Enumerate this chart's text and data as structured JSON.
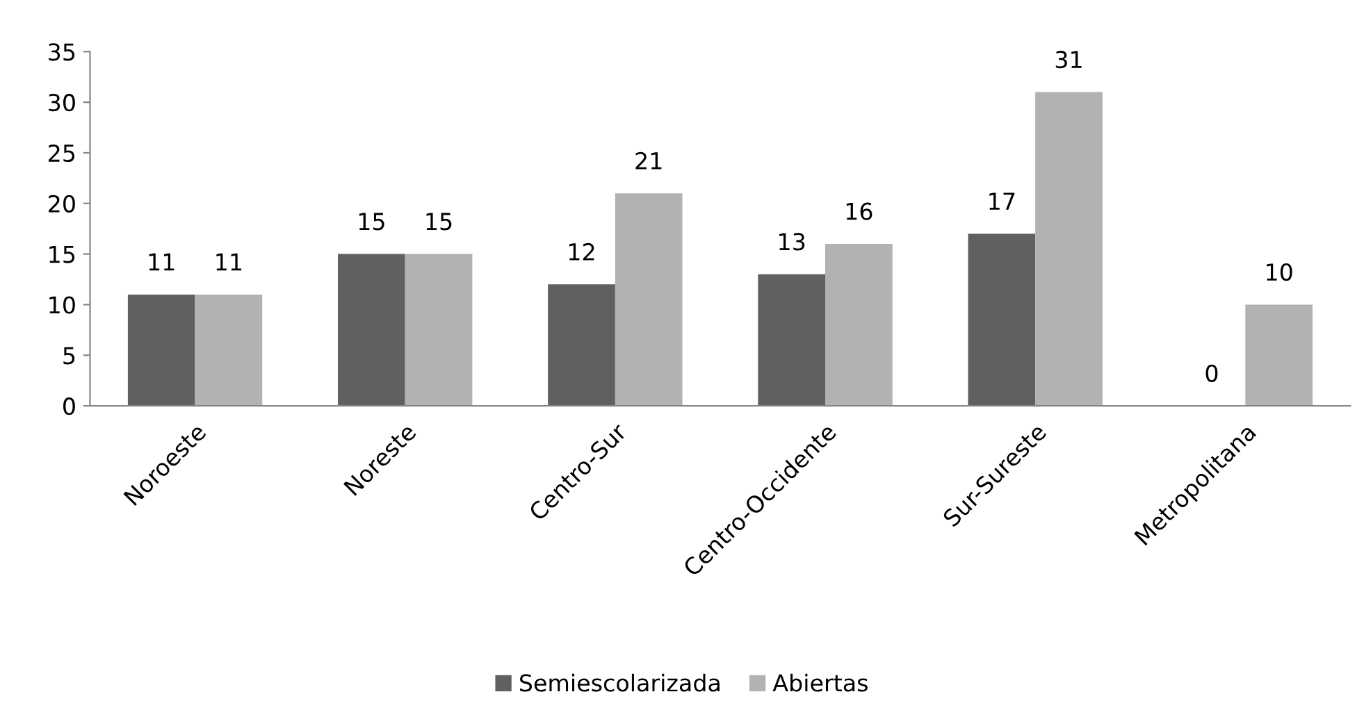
{
  "chart_data": {
    "type": "bar",
    "categories": [
      "Noroeste",
      "Noreste",
      "Centro-Sur",
      "Centro-Occidente",
      "Sur-Sureste",
      "Metropolitana"
    ],
    "series": [
      {
        "name": "Semiescolarizada",
        "color": "#606060",
        "values": [
          11,
          15,
          12,
          13,
          17,
          0
        ]
      },
      {
        "name": "Abiertas",
        "color": "#b2b2b2",
        "values": [
          11,
          15,
          21,
          16,
          31,
          10
        ]
      }
    ],
    "ylim": [
      0,
      35
    ],
    "yticks": [
      0,
      5,
      10,
      15,
      20,
      25,
      30,
      35
    ],
    "data_labels": true,
    "grid": false,
    "legend": "bottom"
  }
}
